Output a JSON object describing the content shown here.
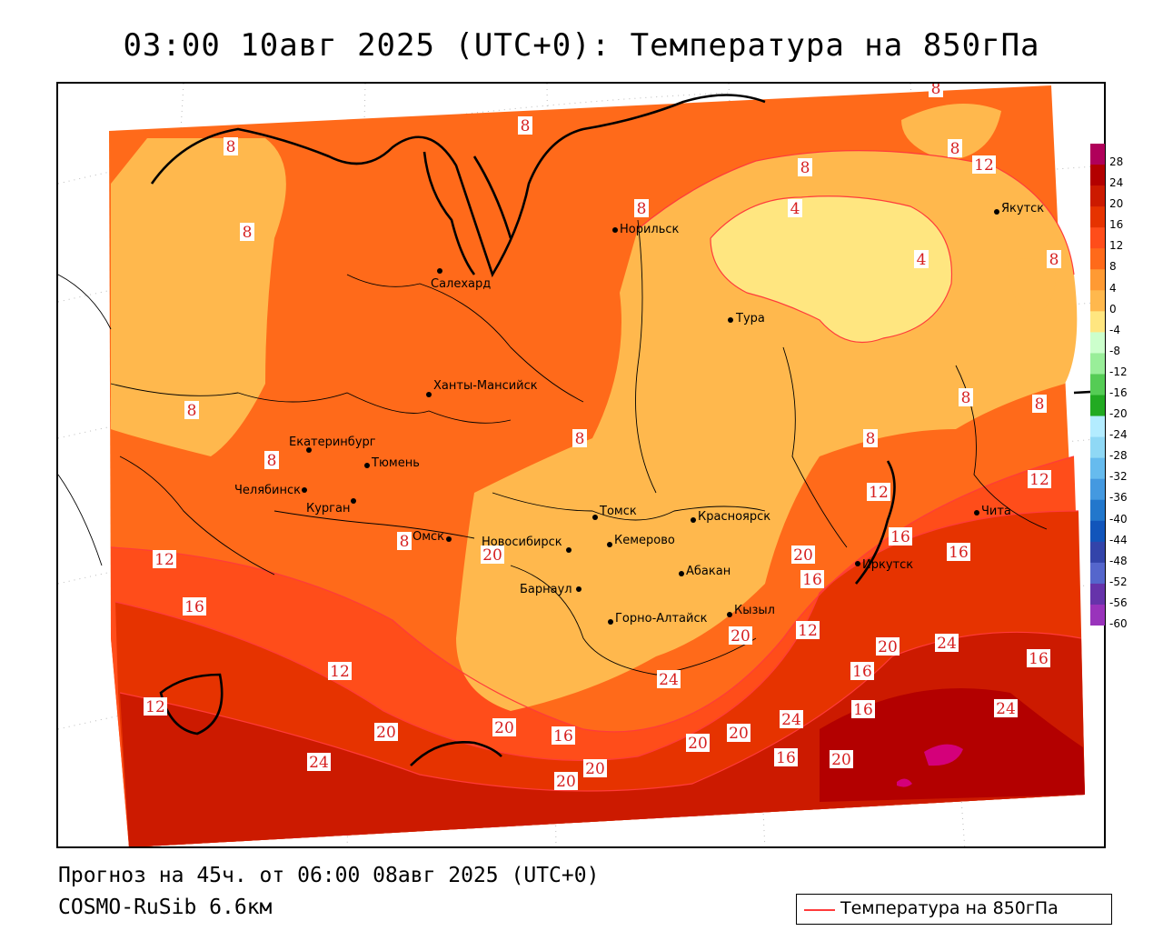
{
  "title": "03:00 10авг 2025 (UTC+0): Температура на 850гПа",
  "forecast_line": "Прогноз на 45ч. от 06:00 08авг 2025 (UTC+0)",
  "model_line": "COSMO-RuSib 6.6км",
  "legend": {
    "line_color": "#ff3b3b",
    "label": "Температура на 850гПа"
  },
  "colorbar": {
    "ticks": [
      "28",
      "24",
      "20",
      "16",
      "12",
      "8",
      "4",
      "0",
      "-4",
      "-8",
      "-12",
      "-16",
      "-20",
      "-24",
      "-28",
      "-32",
      "-36",
      "-40",
      "-44",
      "-48",
      "-52",
      "-56",
      "-60"
    ],
    "colors": [
      "#b0005a",
      "#b30000",
      "#cc1a00",
      "#e63300",
      "#ff4d1a",
      "#ff6a1a",
      "#ff9a33",
      "#ffb84d",
      "#ffe680",
      "#ccffcc",
      "#99ee99",
      "#55cc55",
      "#22aa22",
      "#b3ecff",
      "#8fd8f5",
      "#66bbee",
      "#4499e0",
      "#2277cc",
      "#1155bb",
      "#3344aa",
      "#5566cc",
      "#6633aa",
      "#9933bb"
    ]
  },
  "cities": [
    {
      "name": "Норильск"
    },
    {
      "name": "Салехард"
    },
    {
      "name": "Тура"
    },
    {
      "name": "Якутск"
    },
    {
      "name": "Ханты-Мансийск"
    },
    {
      "name": "Екатеринбург"
    },
    {
      "name": "Тюмень"
    },
    {
      "name": "Челябинск"
    },
    {
      "name": "Курган"
    },
    {
      "name": "Омск"
    },
    {
      "name": "Новосибирск"
    },
    {
      "name": "Томск"
    },
    {
      "name": "Кемерово"
    },
    {
      "name": "Красноярск"
    },
    {
      "name": "Барнаул"
    },
    {
      "name": "Абакан"
    },
    {
      "name": "Горно-Алтайск"
    },
    {
      "name": "Кызыл"
    },
    {
      "name": "Иркутск"
    },
    {
      "name": "Чита"
    }
  ],
  "isoline_labels": [
    "8",
    "8",
    "8",
    "8",
    "8",
    "8",
    "8",
    "8",
    "12",
    "4",
    "4",
    "8",
    "8",
    "8",
    "8",
    "8",
    "8",
    "12",
    "12",
    "16",
    "16",
    "16",
    "16",
    "12",
    "12",
    "16",
    "8",
    "20",
    "20",
    "20",
    "24",
    "20",
    "24",
    "16",
    "16",
    "12",
    "12",
    "16",
    "20",
    "24",
    "20",
    "16",
    "20",
    "20",
    "24",
    "24",
    "16",
    "20",
    "20",
    "20"
  ]
}
